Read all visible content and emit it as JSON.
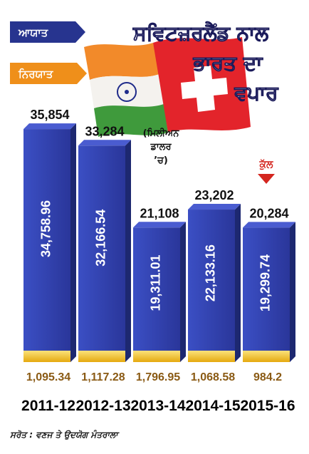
{
  "chart_data": {
    "type": "bar",
    "title_lines": [
      "ਸਵਿਟਜ਼ਰਲੈਂਡ ਨਾਲ",
      "ਭਾਰਤ ਦਾ",
      "ਵਪਾਰ"
    ],
    "unit_lines": [
      "(ਮਿਲੀਅਨ",
      "ਡਾਲਰ",
      "’ਚ)"
    ],
    "total_tag": "ਕੁੱਲ",
    "source": "ਸਰੋਤ : ਵਣਜ ਤੇ ਉਦਯੋਗ ਮੰਤਰਾਲਾ",
    "categories": [
      "2011-12",
      "2012-13",
      "2013-14",
      "2014-15",
      "2015-16"
    ],
    "totals": [
      "35,854",
      "33,284",
      "21,108",
      "23,202",
      "20,284"
    ],
    "series": [
      {
        "name": "ਆਯਾਤ",
        "values": [
          34758.96,
          32166.54,
          19311.01,
          22133.16,
          19299.74
        ],
        "labels": [
          "34,758.96",
          "32,166.54",
          "19,311.01",
          "22,133.16",
          "19,299.74"
        ],
        "color": "#2e3fa8"
      },
      {
        "name": "ਨਿਰਯਾਤ",
        "values": [
          1095.34,
          1117.28,
          1796.95,
          1068.58,
          984.2
        ],
        "labels": [
          "1,095.34",
          "1,117.28",
          "1,796.95",
          "1,068.58",
          "984.2"
        ],
        "color": "#f2c21b"
      }
    ],
    "ylim": [
      0,
      36000
    ]
  },
  "colors": {
    "import_blue": "#2e3fa8",
    "import_blue_dark": "#1d2870",
    "export_yellow": "#f2c21b",
    "legend_import_bg": "#27348f",
    "legend_export_bg": "#ef8f1a",
    "title_navy": "#1a1a5a",
    "total_red": "#d4261f"
  },
  "icons": [
    "india-flag-icon",
    "swiss-flag-icon",
    "down-arrow-icon"
  ]
}
